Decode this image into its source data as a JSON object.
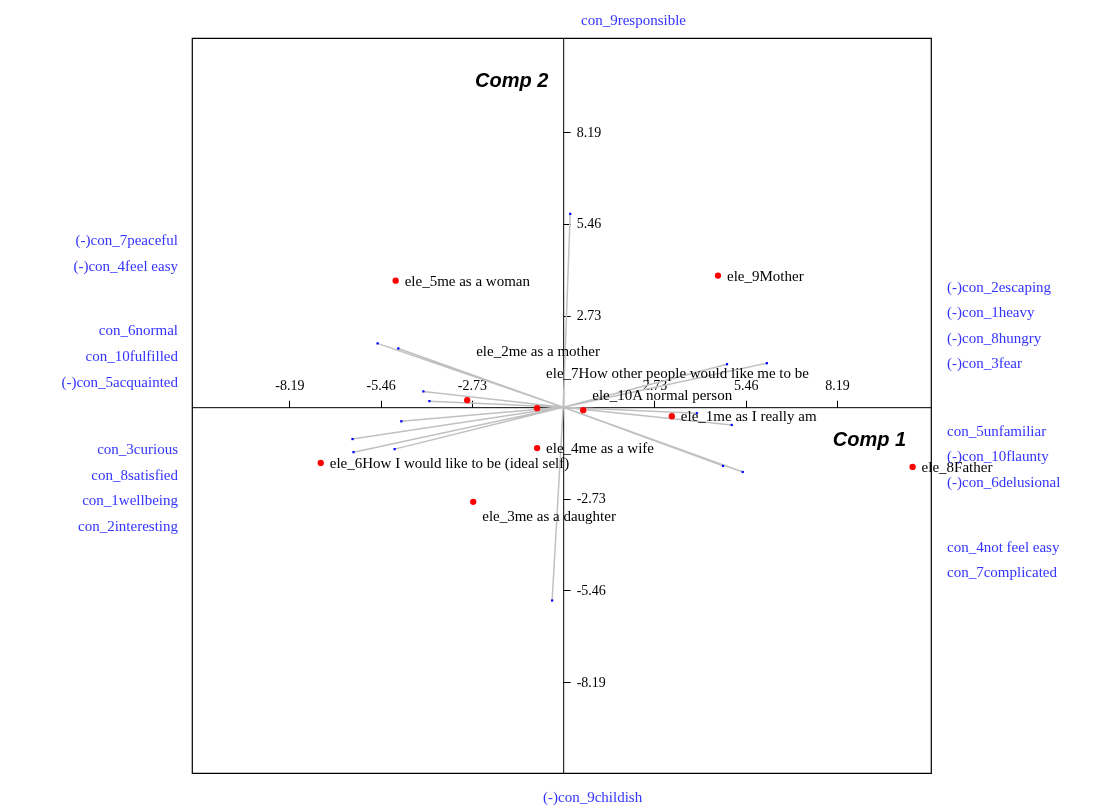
{
  "chart_data": {
    "type": "scatter",
    "xlabel": "Comp 1",
    "ylabel": "Comp 2",
    "xlim": [
      -11.1,
      11
    ],
    "ylim": [
      -10.9,
      11
    ],
    "xticks": [
      -8.19,
      -5.46,
      -2.73,
      2.73,
      5.46,
      8.19
    ],
    "yticks": [
      -8.19,
      -5.46,
      -2.73,
      2.73,
      5.46,
      8.19
    ],
    "series": [
      {
        "type": "line",
        "color": "#c0c0c0",
        "marker": "none",
        "x": [
          0,
          -5.55,
          null,
          0,
          -4.93,
          null,
          0,
          -4.18,
          null,
          0,
          -4.0,
          null,
          0,
          -4.84,
          null,
          0,
          -6.3,
          null,
          0,
          -6.27,
          null,
          0,
          -5.04,
          null,
          0,
          4.9,
          null,
          0,
          6.09,
          null,
          0,
          4.78,
          null,
          0,
          5.37,
          null,
          0,
          4.0,
          null,
          0,
          5.04,
          null,
          0,
          0.21,
          null,
          0,
          -0.33
        ],
        "values": [
          0,
          1.9,
          null,
          0,
          1.75,
          null,
          0,
          0.47,
          null,
          0,
          0.18,
          null,
          0,
          -0.42,
          null,
          0,
          -0.95,
          null,
          0,
          -1.34,
          null,
          0,
          -1.25,
          null,
          0,
          1.28,
          null,
          0,
          1.31,
          null,
          0,
          -1.75,
          null,
          0,
          -1.93,
          null,
          0,
          -0.18,
          null,
          0,
          -0.53,
          null,
          0,
          5.76,
          null,
          0,
          -5.76
        ]
      },
      {
        "color": "#0000ff",
        "marker": "square",
        "x": [
          -5.55,
          -4.93,
          -4.18,
          -4.0,
          -4.84,
          -6.3,
          -6.27,
          -5.04,
          4.9,
          6.09,
          4.78,
          5.37,
          4.0,
          5.04,
          0.21,
          -0.33
        ],
        "values": [
          1.9,
          1.75,
          0.47,
          0.18,
          -0.42,
          -0.95,
          -1.34,
          -1.25,
          1.28,
          1.31,
          -1.75,
          -1.93,
          -0.18,
          -0.53,
          5.76,
          -5.76
        ]
      },
      {
        "color": "#ff0000",
        "marker": "circle",
        "x": [
          -5.01,
          4.63,
          -2.87,
          -0.78,
          0.6,
          3.25,
          -0.78,
          -7.25,
          -2.69,
          10.45
        ],
        "values": [
          3.77,
          3.92,
          0.21,
          -0.03,
          -0.09,
          -0.27,
          -1.22,
          -1.66,
          -2.82,
          -1.78
        ]
      }
    ],
    "annotations": [
      {
        "text": "ele_5me as a woman",
        "x": -5.01,
        "y": 3.77
      },
      {
        "text": "ele_9Mother",
        "x": 4.63,
        "y": 3.92
      },
      {
        "text": "ele_2me as a mother",
        "x": -2.87,
        "y": 0.21
      },
      {
        "text": "ele_7How other people would like me to be",
        "x": -0.78,
        "y": -0.03
      },
      {
        "text": "ele_10A normal person",
        "x": 0.6,
        "y": -0.09
      },
      {
        "text": "ele_1me as I really am",
        "x": 3.25,
        "y": -0.27
      },
      {
        "text": "ele_4me as a wife",
        "x": -0.78,
        "y": -1.22
      },
      {
        "text": "ele_6How I would like to be (ideal self)",
        "x": -7.25,
        "y": -1.66
      },
      {
        "text": "ele_3me as a daughter",
        "x": -2.69,
        "y": -2.82
      },
      {
        "text": "ele_8Father",
        "x": 10.45,
        "y": -1.78
      },
      "(-)con_7peaceful",
      "(-)con_4feel easy",
      "con_6normal",
      "con_10fulfilled",
      "(-)con_5acquainted",
      "con_3curious",
      "con_8satisfied",
      "con_1wellbeing",
      "con_2interesting",
      "(-)con_2escaping",
      "(-)con_1heavy",
      "(-)con_8hungry",
      "(-)con_3fear",
      "con_5unfamiliar",
      "(-)con_10flaunty",
      "(-)con_6delusional",
      "con_4not feel easy",
      "con_7complicated",
      "con_9responsible",
      "(-)con_9childish"
    ]
  }
}
